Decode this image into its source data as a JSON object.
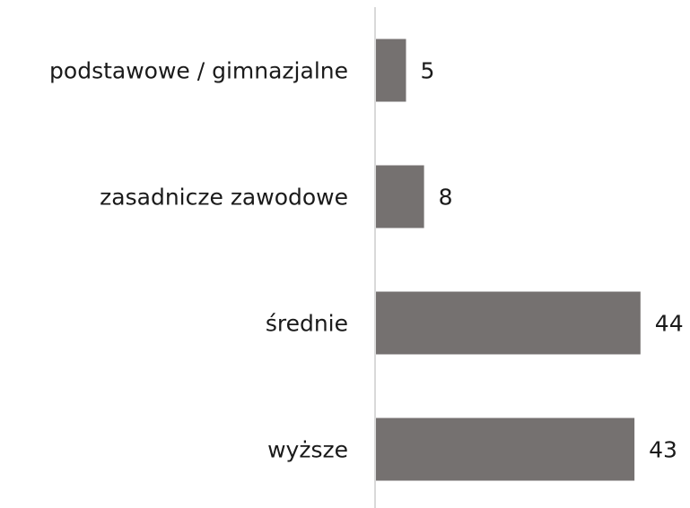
{
  "chart_data": {
    "type": "bar",
    "orientation": "horizontal",
    "categories": [
      "podstawowe / gimnazjalne",
      "zasadnicze zawodowe",
      "średnie",
      "wyższe"
    ],
    "values": [
      5,
      8,
      44,
      43
    ],
    "color": "#757170",
    "xlim": [
      0,
      50
    ],
    "grid": false
  }
}
